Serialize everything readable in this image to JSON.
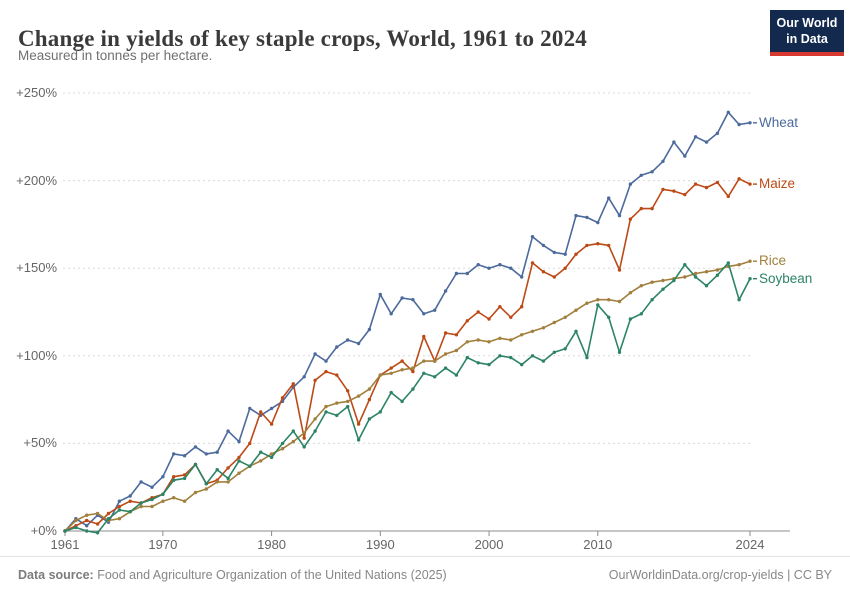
{
  "header": {
    "title": "Change in yields of key staple crops, World, 1961 to 2024",
    "subtitle": "Measured in tonnes per hectare."
  },
  "logo": {
    "line1": "Our World",
    "line2": "in Data"
  },
  "footer": {
    "source_prefix": "Data source:",
    "source_text": " Food and Agriculture Organization of the United Nations (2025)",
    "right": "OurWorldinData.org/crop-yields | CC BY"
  },
  "colors": {
    "background": "#ffffff",
    "grid": "#d9d9d9",
    "axis": "#8c8c8c",
    "tick_text": "#666666",
    "title_text": "#3a3a3a",
    "subtitle_text": "#707070",
    "footer_text": "#878787",
    "logo_bg": "#13294E",
    "logo_accent": "#D7382F",
    "wheat": "#4C6A9C",
    "maize": "#BC4A17",
    "rice": "#A27F3C",
    "soybean": "#2C8465"
  },
  "chart_data": {
    "type": "line",
    "title": "Change in yields of key staple crops, World, 1961 to 2024",
    "subtitle": "Measured in tonnes per hectare.",
    "unit": "% change since 1961",
    "xlabel": "",
    "ylabel": "",
    "xlim": [
      1961,
      2024
    ],
    "ylim": [
      0,
      250
    ],
    "grid": "horizontal dashed",
    "legend_position": "line-end-labels-right",
    "yticks": [
      {
        "label": "+0%",
        "value": 0
      },
      {
        "label": "+50%",
        "value": 50
      },
      {
        "label": "+100%",
        "value": 100
      },
      {
        "label": "+150%",
        "value": 150
      },
      {
        "label": "+200%",
        "value": 200
      },
      {
        "label": "+250%",
        "value": 250
      }
    ],
    "xticks": [
      1961,
      1970,
      1980,
      1990,
      2000,
      2010,
      2024
    ],
    "years": [
      1961,
      1962,
      1963,
      1964,
      1965,
      1966,
      1967,
      1968,
      1969,
      1970,
      1971,
      1972,
      1973,
      1974,
      1975,
      1976,
      1977,
      1978,
      1979,
      1980,
      1981,
      1982,
      1983,
      1984,
      1985,
      1986,
      1987,
      1988,
      1989,
      1990,
      1991,
      1992,
      1993,
      1994,
      1995,
      1996,
      1997,
      1998,
      1999,
      2000,
      2001,
      2002,
      2003,
      2004,
      2005,
      2006,
      2007,
      2008,
      2009,
      2010,
      2011,
      2012,
      2013,
      2014,
      2015,
      2016,
      2017,
      2018,
      2019,
      2020,
      2021,
      2022,
      2023,
      2024
    ],
    "series": [
      {
        "name": "Wheat",
        "color": "#4C6A9C",
        "values": [
          0,
          7,
          3,
          9,
          5,
          17,
          20,
          28,
          25,
          31,
          44,
          43,
          48,
          44,
          45,
          57,
          51,
          70,
          66,
          70,
          74,
          82,
          88,
          101,
          97,
          105,
          109,
          107,
          115,
          135,
          124,
          133,
          132,
          124,
          126,
          137,
          147,
          147,
          152,
          150,
          152,
          150,
          145,
          168,
          163,
          159,
          158,
          180,
          179,
          176,
          190,
          180,
          198,
          203,
          205,
          211,
          222,
          214,
          225,
          222,
          227,
          239,
          232,
          233
        ]
      },
      {
        "name": "Maize",
        "color": "#BC4A17",
        "values": [
          0,
          3,
          6,
          4,
          10,
          14,
          17,
          16,
          19,
          21,
          31,
          32,
          38,
          27,
          29,
          36,
          42,
          50,
          68,
          61,
          76,
          84,
          53,
          86,
          91,
          89,
          80,
          61,
          75,
          89,
          93,
          97,
          91,
          111,
          97,
          113,
          112,
          120,
          125,
          121,
          128,
          122,
          128,
          153,
          148,
          145,
          150,
          158,
          163,
          164,
          163,
          149,
          178,
          184,
          184,
          195,
          194,
          192,
          198,
          196,
          199,
          191,
          201,
          198
        ]
      },
      {
        "name": "Rice",
        "color": "#A27F3C",
        "values": [
          0,
          6,
          9,
          10,
          6,
          7,
          11,
          14,
          14,
          17,
          19,
          17,
          22,
          24,
          28,
          28,
          33,
          37,
          40,
          44,
          47,
          51,
          56,
          64,
          71,
          73,
          74,
          77,
          81,
          89,
          90,
          92,
          93,
          97,
          97,
          101,
          103,
          108,
          109,
          108,
          110,
          109,
          112,
          114,
          116,
          119,
          122,
          126,
          130,
          132,
          132,
          131,
          136,
          140,
          142,
          143,
          144,
          145,
          147,
          148,
          149,
          151,
          152,
          154
        ]
      },
      {
        "name": "Soybean",
        "color": "#2C8465",
        "values": [
          0,
          2,
          0,
          -1,
          7,
          12,
          11,
          16,
          18,
          21,
          29,
          30,
          38,
          27,
          35,
          30,
          40,
          37,
          45,
          42,
          50,
          57,
          48,
          57,
          68,
          66,
          71,
          52,
          64,
          68,
          79,
          74,
          81,
          90,
          88,
          93,
          89,
          99,
          96,
          95,
          100,
          99,
          95,
          100,
          97,
          102,
          104,
          114,
          99,
          129,
          122,
          102,
          121,
          124,
          132,
          138,
          143,
          152,
          145,
          140,
          146,
          153,
          132,
          144
        ]
      }
    ]
  }
}
